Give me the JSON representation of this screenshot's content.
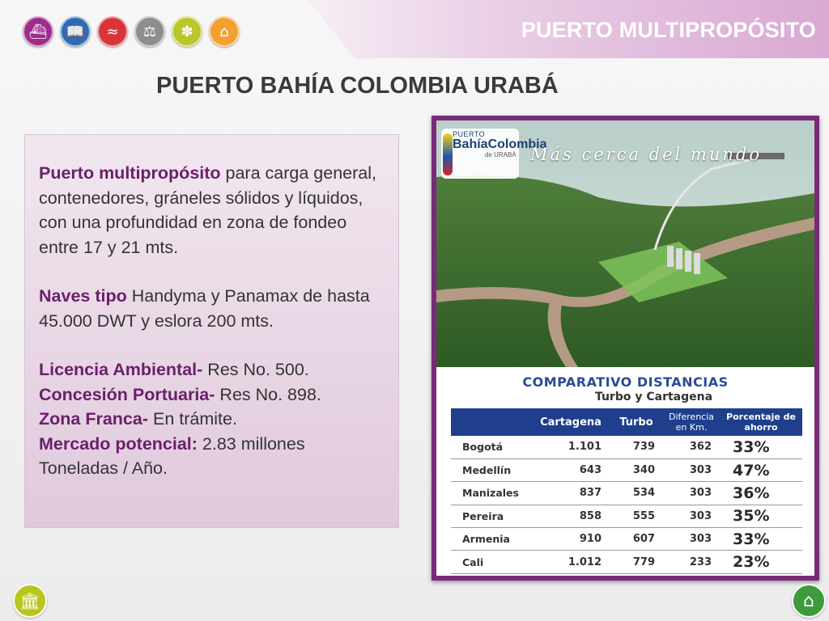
{
  "header": {
    "section_title": "PUERTO MULTIPROPÓSITO",
    "nav_icons": [
      {
        "name": "ship-icon",
        "glyph": "⛴",
        "color": "#9e2c8b"
      },
      {
        "name": "book-icon",
        "glyph": "📖",
        "color": "#2f6bb3"
      },
      {
        "name": "road-icon",
        "glyph": "≈",
        "color": "#d9343b"
      },
      {
        "name": "scales-icon",
        "glyph": "⚖",
        "color": "#8d8d8d"
      },
      {
        "name": "palm-tree-icon",
        "glyph": "✽",
        "color": "#b9c72a"
      },
      {
        "name": "hand-building-icon",
        "glyph": "⌂",
        "color": "#f2a12f"
      }
    ]
  },
  "page": {
    "title": "PUERTO BAHÍA COLOMBIA URABÁ"
  },
  "info": {
    "p1_highlight": "Puerto multipropósito",
    "p1_text": " para carga general, contenedores, gráneles sólidos y líquidos, con una profundidad en zona de fondeo entre 17 y 21 mts.",
    "p2_highlight": "Naves tipo",
    "p2_text": " Handyma y Panamax de hasta 45.000 DWT y eslora 200 mts.",
    "l1_highlight": "Licencia Ambiental-",
    "l1_text": " Res No. 500.",
    "l2_highlight": "Concesión Portuaria-",
    "l2_text": " Res No. 898.",
    "l3_highlight": "Zona Franca-",
    "l3_text": "  En trámite.",
    "l4_highlight": "Mercado potencial:",
    "l4_text": " 2.83 millones Toneladas / Año."
  },
  "image": {
    "logo_top": "PUERTO",
    "logo_main": "BahíaColombia",
    "logo_bottom": "de URABÁ",
    "slogan": "Más cerca del mundo",
    "compare_title": "COMPARATIVO DISTANCIAS",
    "compare_subtitle": "Turbo y Cartagena"
  },
  "table": {
    "headers": [
      "",
      "Cartagena",
      "Turbo",
      "Diferencia en Km.",
      "Porcentaje de ahorro"
    ],
    "rows": [
      [
        "Bogotá",
        "1.101",
        "739",
        "362",
        "33%"
      ],
      [
        "Medellín",
        "643",
        "340",
        "303",
        "47%"
      ],
      [
        "Manizales",
        "837",
        "534",
        "303",
        "36%"
      ],
      [
        "Pereira",
        "858",
        "555",
        "303",
        "35%"
      ],
      [
        "Armenia",
        "910",
        "607",
        "303",
        "33%"
      ],
      [
        "Cali",
        "1.012",
        "779",
        "233",
        "23%"
      ]
    ]
  },
  "footer": {
    "left_icon": {
      "name": "building-columns-icon",
      "glyph": "🏛"
    },
    "home_icon": {
      "name": "home-icon",
      "glyph": "⌂"
    }
  }
}
